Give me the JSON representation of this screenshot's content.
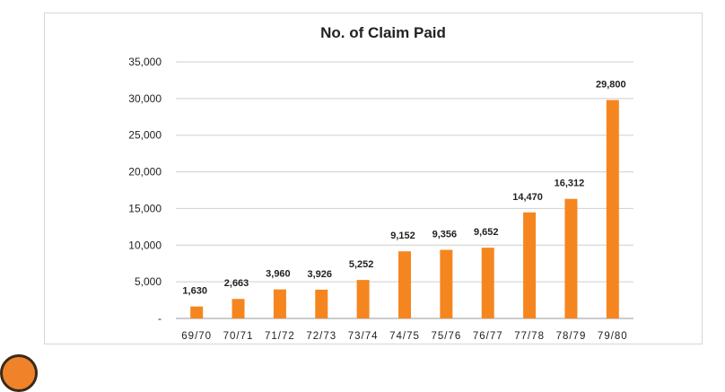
{
  "chart_data": {
    "type": "bar",
    "title": "No. of Claim Paid",
    "xlabel": "",
    "ylabel": "",
    "categories": [
      "69/70",
      "70/71",
      "71/72",
      "72/73",
      "73/74",
      "74/75",
      "75/76",
      "76/77",
      "77/78",
      "78/79",
      "79/80"
    ],
    "values": [
      1630,
      2663,
      3960,
      3926,
      5252,
      9152,
      9356,
      9652,
      14470,
      16312,
      29800
    ],
    "value_labels": [
      "1,630",
      "2,663",
      "3,960",
      "3,926",
      "5,252",
      "9,152",
      "9,356",
      "9,652",
      "14,470",
      "16,312",
      "29,800"
    ],
    "yticks": [
      0,
      5000,
      10000,
      15000,
      20000,
      25000,
      30000,
      35000
    ],
    "ytick_labels": [
      "-",
      "5,000",
      "10,000",
      "15,000",
      "20,000",
      "25,000",
      "30,000",
      "35,000"
    ],
    "ylim": [
      0,
      35000
    ],
    "grid": true,
    "legend": "none",
    "bar_color": "#f5861f"
  },
  "icons": {
    "corner": "orange-circle-icon"
  }
}
